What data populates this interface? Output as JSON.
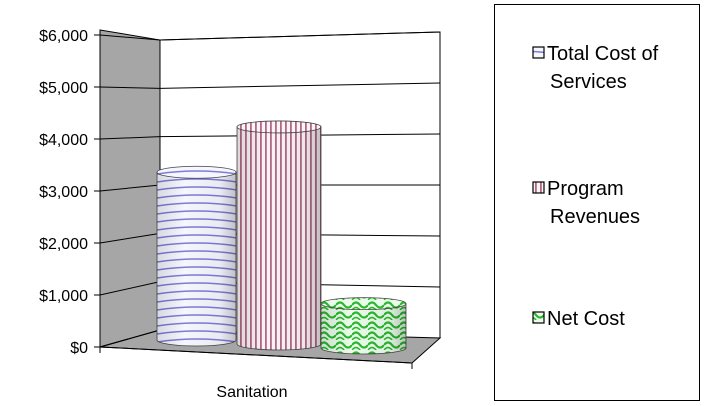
{
  "chart_data": {
    "type": "bar",
    "style": "3d-cylinder",
    "categories": [
      "Sanitation"
    ],
    "series": [
      {
        "name": "Total Cost of Services",
        "values": [
          3400
        ],
        "color": "#8a8ad8",
        "pattern": "horizontal-arcs"
      },
      {
        "name": "Program Revenues",
        "values": [
          4400
        ],
        "color": "#b8708a",
        "pattern": "vertical-stripes"
      },
      {
        "name": "Net Cost",
        "values": [
          900
        ],
        "color": "#39c43d",
        "pattern": "wave-mesh"
      }
    ],
    "y_ticks": [
      "$0",
      "$1,000",
      "$2,000",
      "$3,000",
      "$4,000",
      "$5,000",
      "$6,000"
    ],
    "ylim": [
      0,
      6000
    ],
    "grid": true,
    "legend_position": "right",
    "legend": {
      "items": [
        {
          "lines": [
            "Total Cost of",
            "Services"
          ]
        },
        {
          "lines": [
            "Program",
            "Revenues"
          ]
        },
        {
          "lines": [
            "Net Cost"
          ]
        }
      ]
    },
    "colors": {
      "wall_left": "#a6a6a6",
      "floor": "#a6a6a6",
      "back_wall": "#ffffff",
      "gridline": "#000000"
    }
  }
}
